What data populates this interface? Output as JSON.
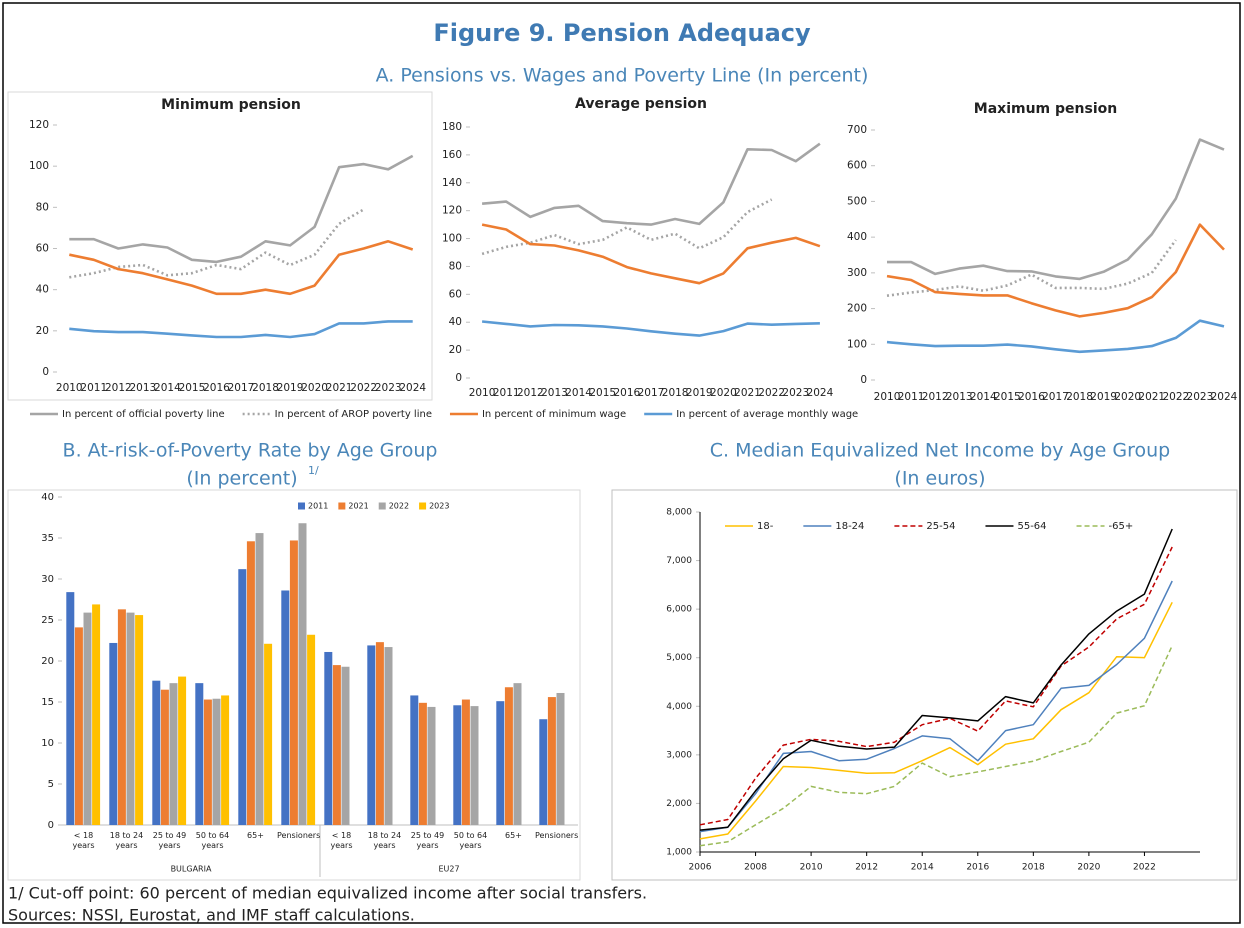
{
  "figure": {
    "title": "Figure 9. Pension Adequacy",
    "panel_a": "A. Pensions vs. Wages and Poverty Line (In percent)",
    "panel_b": [
      "B. At-risk-of-Poverty Rate by Age Group",
      "(In percent)"
    ],
    "panel_b_marker": "1/",
    "panel_c": [
      "C. Median Equivalized Net Income by Age Group",
      "(In euros)"
    ],
    "notes": [
      "1/ Cut-off point: 60 percent of median equivalized income after social transfers.",
      "Sources: NSSI, Eurostat, and IMF staff calculations."
    ]
  },
  "chart_data": [
    {
      "type": "line",
      "title": "Minimum pension",
      "legend": "bottom",
      "categories": [
        "2010",
        "2011",
        "2012",
        "2013",
        "2014",
        "2015",
        "2016",
        "2017",
        "2018",
        "2019",
        "2020",
        "2021",
        "2022",
        "2023",
        "2024"
      ],
      "ylim": [
        0,
        120
      ],
      "yticks": [
        0,
        20,
        40,
        60,
        80,
        100,
        120
      ],
      "series": [
        {
          "name": "In percent of official poverty line",
          "color": "#a5a5a5",
          "values": [
            64.5,
            64.5,
            60,
            62,
            60.5,
            54.5,
            53.5,
            56,
            63.5,
            61.5,
            70.5,
            99.5,
            101,
            98.5,
            105
          ]
        },
        {
          "name": "In percent of AROP poverty line",
          "color": "#a5a5a5",
          "style": "dotted",
          "values": [
            46,
            48,
            51,
            52,
            47,
            48,
            52,
            50,
            58,
            52,
            57,
            72,
            79,
            null,
            null
          ]
        },
        {
          "name": "In percent of minimum wage",
          "color": "#ed7d31",
          "values": [
            57,
            54.5,
            50,
            48,
            45,
            42,
            38,
            38,
            40,
            38,
            42,
            57,
            60,
            63.5,
            59.5
          ]
        },
        {
          "name": "In percent of average monthly wage",
          "color": "#5b9bd5",
          "values": [
            21,
            19.8,
            19.4,
            19.4,
            18.6,
            17.8,
            17,
            17,
            18,
            17,
            18.4,
            23.6,
            23.6,
            24.6,
            24.6
          ]
        }
      ]
    },
    {
      "type": "line",
      "title": "Average pension",
      "categories": [
        "2010",
        "2011",
        "2012",
        "2013",
        "2014",
        "2015",
        "2016",
        "2017",
        "2018",
        "2019",
        "2020",
        "2021",
        "2022",
        "2023",
        "2024"
      ],
      "ylim": [
        0,
        180
      ],
      "yticks": [
        0,
        20,
        40,
        60,
        80,
        100,
        120,
        140,
        160,
        180
      ],
      "series": [
        {
          "color": "#a5a5a5",
          "values": [
            125,
            126.5,
            115.5,
            122,
            123.5,
            112.5,
            111,
            110,
            114,
            110.5,
            126,
            164,
            163.5,
            155.5,
            168
          ]
        },
        {
          "color": "#a5a5a5",
          "style": "dotted",
          "values": [
            89,
            94,
            97,
            102.5,
            96,
            99,
            108,
            99,
            103.5,
            93,
            101,
            119,
            128,
            null,
            null
          ]
        },
        {
          "color": "#ed7d31",
          "values": [
            110,
            106.5,
            96,
            95,
            91.5,
            87,
            79.5,
            75,
            71.5,
            68,
            75,
            93,
            97,
            100.5,
            94.5
          ]
        },
        {
          "color": "#5b9bd5",
          "values": [
            40.5,
            38.8,
            37,
            38,
            37.8,
            37,
            35.5,
            33.5,
            31.8,
            30.4,
            33.6,
            39,
            38.2,
            38.8,
            39.2
          ]
        }
      ]
    },
    {
      "type": "line",
      "title": "Maximum pension",
      "categories": [
        "2010",
        "2011",
        "2012",
        "2013",
        "2014",
        "2015",
        "2016",
        "2017",
        "2018",
        "2019",
        "2020",
        "2021",
        "2022",
        "2023",
        "2024"
      ],
      "ylim": [
        0,
        700
      ],
      "yticks": [
        0,
        100,
        200,
        300,
        400,
        500,
        600,
        700
      ],
      "series": [
        {
          "color": "#a5a5a5",
          "values": [
            330,
            330,
            297,
            312,
            320,
            305,
            304,
            290,
            283,
            303,
            337,
            408,
            508,
            673,
            645
          ]
        },
        {
          "color": "#a5a5a5",
          "style": "dotted",
          "values": [
            236,
            245,
            252,
            262,
            250,
            265,
            295,
            258,
            258,
            255,
            270,
            300,
            392,
            null,
            null
          ]
        },
        {
          "color": "#ed7d31",
          "values": [
            291,
            280,
            246,
            241,
            237,
            237,
            215,
            195,
            178,
            188,
            201,
            232,
            302,
            435,
            365
          ]
        },
        {
          "color": "#5b9bd5",
          "values": [
            106,
            100,
            95,
            96,
            96,
            99,
            94,
            86,
            79,
            83,
            87,
            95,
            118,
            166,
            150
          ]
        }
      ]
    },
    {
      "type": "bar",
      "legend": "top",
      "categories": [
        "< 18 years",
        "18 to 24 years",
        "25 to 49 years",
        "50 to 64 years",
        "65+",
        "Pensioners",
        "< 18 years",
        "18 to 24 years",
        "25 to 49 years",
        "50 to 64 years",
        "65+",
        "Pensioners"
      ],
      "groups": [
        "BULGARIA",
        "EU27"
      ],
      "ylim": [
        0,
        40
      ],
      "yticks": [
        0,
        5,
        10,
        15,
        20,
        25,
        30,
        35,
        40
      ],
      "series": [
        {
          "name": "2011",
          "color": "#4472c4",
          "values": [
            28.4,
            22.2,
            17.6,
            17.3,
            31.2,
            28.6,
            21.1,
            21.9,
            15.8,
            14.6,
            15.1,
            12.9
          ]
        },
        {
          "name": "2021",
          "color": "#ed7d31",
          "values": [
            24.1,
            26.3,
            16.5,
            15.3,
            34.6,
            34.7,
            19.5,
            22.3,
            14.9,
            15.3,
            16.8,
            15.6
          ]
        },
        {
          "name": "2022",
          "color": "#a5a5a5",
          "values": [
            25.9,
            25.9,
            17.3,
            15.4,
            35.6,
            36.8,
            19.3,
            21.7,
            14.4,
            14.5,
            17.3,
            16.1
          ]
        },
        {
          "name": "2023",
          "color": "#ffc000",
          "values": [
            26.9,
            25.6,
            18.1,
            15.8,
            22.1,
            23.2,
            null,
            null,
            null,
            null,
            null,
            null
          ]
        }
      ]
    },
    {
      "type": "line",
      "legend": "top",
      "x": [
        2006,
        2007,
        2008,
        2009,
        2010,
        2011,
        2012,
        2013,
        2014,
        2015,
        2016,
        2017,
        2018,
        2019,
        2020,
        2021,
        2022,
        2023
      ],
      "xlim": [
        2006,
        2024
      ],
      "xticks": [
        2006,
        2008,
        2010,
        2012,
        2014,
        2016,
        2018,
        2020,
        2022
      ],
      "ylim": [
        1000,
        8000
      ],
      "yticks": [
        {
          "value": 1000,
          "label": "1,000"
        },
        {
          "value": 2000,
          "label": "2,000"
        },
        {
          "value": 3000,
          "label": "3,000"
        },
        {
          "value": 4000,
          "label": "4,000"
        },
        {
          "value": 5000,
          "label": "5,000"
        },
        {
          "value": 6000,
          "label": "6,000"
        },
        {
          "value": 7000,
          "label": "7,000"
        },
        {
          "value": 8000,
          "label": "8,000"
        }
      ],
      "series": [
        {
          "name": "18-",
          "color": "#ffc000",
          "values": [
            1270,
            1370,
            2050,
            2760,
            2740,
            2680,
            2620,
            2630,
            2880,
            3150,
            2800,
            3220,
            3330,
            3930,
            4280,
            5020,
            5000,
            6140
          ]
        },
        {
          "name": "18-24",
          "color": "#4f81bd",
          "values": [
            1420,
            1510,
            2200,
            3030,
            3070,
            2880,
            2910,
            3130,
            3390,
            3330,
            2880,
            3500,
            3620,
            4370,
            4430,
            4860,
            5400,
            6580
          ]
        },
        {
          "name": "25-54",
          "color": "#c00000",
          "style": "dashed",
          "values": [
            1560,
            1670,
            2520,
            3200,
            3320,
            3280,
            3170,
            3260,
            3620,
            3750,
            3490,
            4110,
            3990,
            4830,
            5220,
            5800,
            6100,
            7280
          ]
        },
        {
          "name": "55-64",
          "color": "#000000",
          "values": [
            1450,
            1510,
            2260,
            2920,
            3300,
            3180,
            3120,
            3160,
            3810,
            3760,
            3700,
            4200,
            4070,
            4850,
            5490,
            5960,
            6310,
            7650
          ]
        },
        {
          "name": "-65+",
          "color": "#9bbb59",
          "style": "dashed",
          "values": [
            1130,
            1210,
            1560,
            1900,
            2350,
            2230,
            2200,
            2350,
            2830,
            2550,
            2650,
            2760,
            2870,
            3070,
            3260,
            3860,
            4010,
            5250
          ]
        }
      ]
    }
  ]
}
